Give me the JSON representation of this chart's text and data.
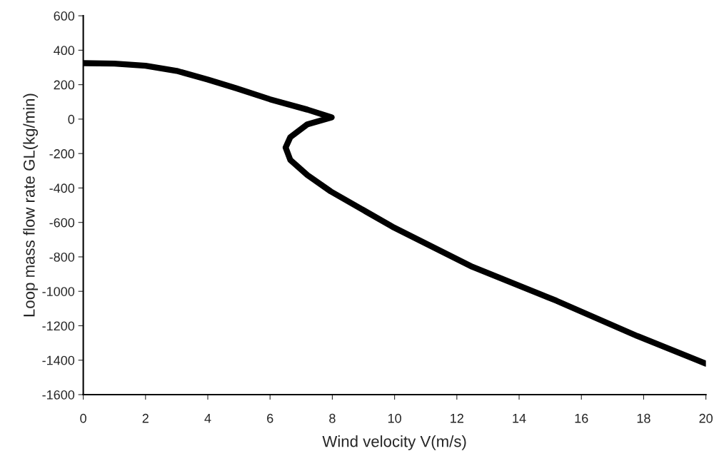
{
  "chart_data": {
    "type": "line",
    "xlabel": "Wind velocity V(m/s)",
    "ylabel": "Loop mass flow rate GL(kg/min)",
    "x": [
      0,
      1,
      2,
      3,
      4,
      4.9,
      6,
      7.2,
      7.98,
      7.2,
      6.65,
      6.5,
      6.65,
      7.2,
      7.95,
      9.93,
      12.5,
      15.2,
      17.8,
      20
    ],
    "series": [
      {
        "color": "#000000",
        "values": [
          325,
          322,
          310,
          280,
          230,
          180,
          115,
          55,
          10,
          -30,
          -105,
          -165,
          -237,
          -325,
          -420,
          -625,
          -858,
          -1055,
          -1260,
          -1420
        ]
      }
    ],
    "xlim": [
      0,
      20
    ],
    "xticks": [
      0,
      2,
      4,
      6,
      8,
      10,
      12,
      14,
      16,
      18,
      20
    ],
    "ylim": [
      -1600,
      600
    ],
    "yticks": [
      -1600,
      -1400,
      -1200,
      -1000,
      -800,
      -600,
      -400,
      -200,
      0,
      200,
      400,
      600
    ],
    "grid": false,
    "legend": false,
    "marker": "none",
    "line_style": "solid"
  }
}
